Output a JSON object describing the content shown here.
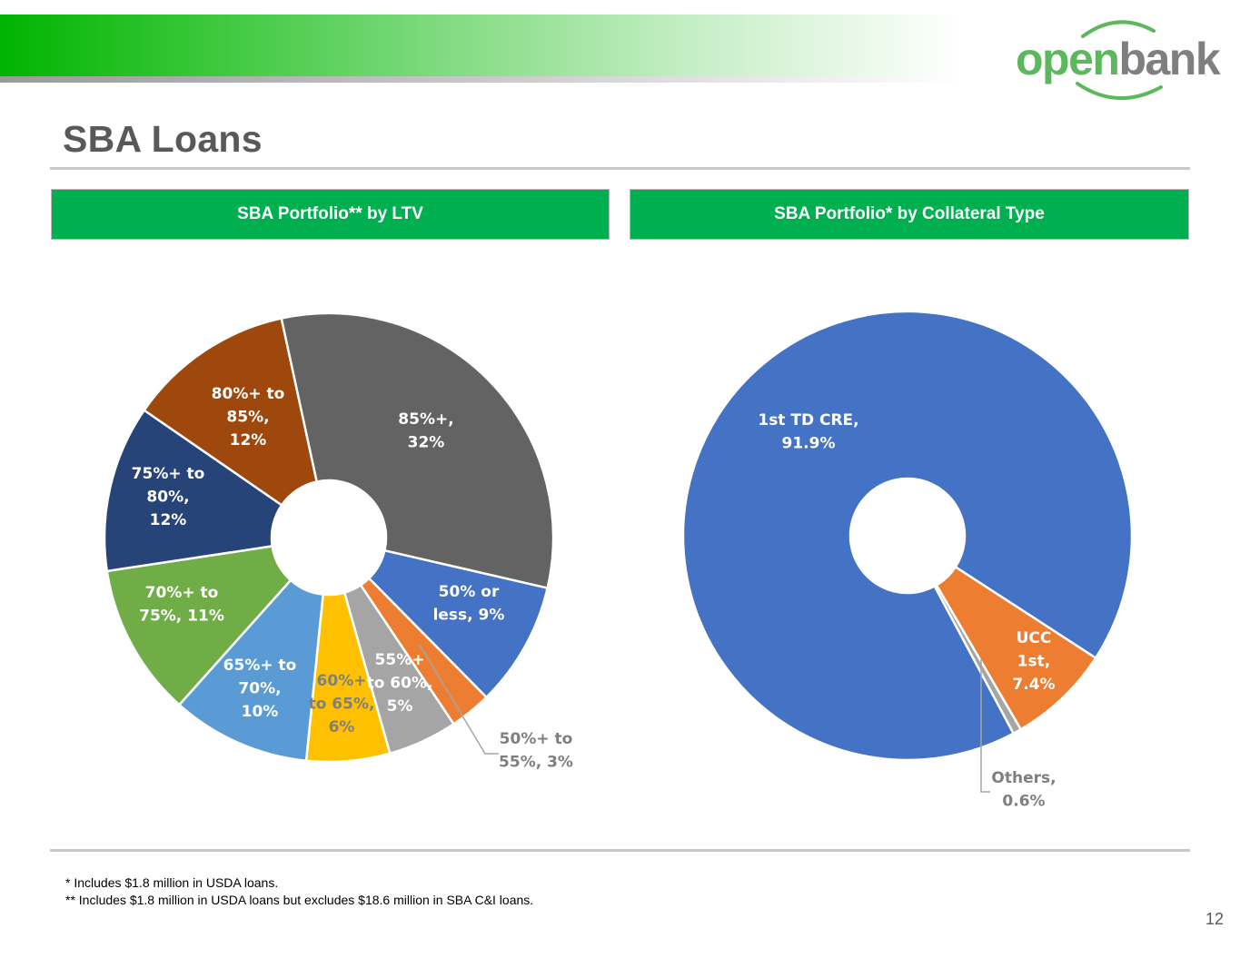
{
  "page": {
    "title": "SBA Loans",
    "page_number": "12",
    "footnotes": [
      "* Includes $1.8 million in USDA loans.",
      "** Includes $1.8 million in USDA loans but excludes $18.6 million in SBA C&I loans."
    ]
  },
  "logo": {
    "word_1": "open",
    "word_2": "bank",
    "color_1": "#5cb85c",
    "color_2": "#7f7f7f"
  },
  "panels": {
    "ltv": {
      "header": "SBA Portfolio** by LTV"
    },
    "collateral": {
      "header": "SBA Portfolio* by Collateral Type"
    }
  },
  "chart_data": [
    {
      "type": "pie",
      "variant": "donut",
      "title": "SBA Portfolio** by LTV",
      "unit": "%",
      "slices": [
        {
          "label": [
            "50% or",
            "less, 9%"
          ],
          "value": 9,
          "color": "#4472c4",
          "label_color": "#ffffff"
        },
        {
          "label": [
            "50%+ to",
            "55%, 3%"
          ],
          "value": 3,
          "color": "#ed7d31",
          "label_color": "#7f7f7f",
          "leader_line": true
        },
        {
          "label": [
            "55%+",
            "to 60%,",
            "5%"
          ],
          "value": 5,
          "color": "#a5a5a5",
          "label_color": "#ffffff"
        },
        {
          "label": [
            "60%+",
            "to 65%,",
            "6%"
          ],
          "value": 6,
          "color": "#ffc000",
          "label_color": "#7f7f7f"
        },
        {
          "label": [
            "65%+ to",
            "70%,",
            "10%"
          ],
          "value": 10,
          "color": "#5b9bd5",
          "label_color": "#ffffff"
        },
        {
          "label": [
            "70%+ to",
            "75%, 11%"
          ],
          "value": 11,
          "color": "#70ad47",
          "label_color": "#ffffff"
        },
        {
          "label": [
            "75%+ to",
            "80%,",
            "12%"
          ],
          "value": 12,
          "color": "#264478",
          "label_color": "#ffffff"
        },
        {
          "label": [
            "80%+ to",
            "85%,",
            "12%"
          ],
          "value": 12,
          "color": "#9e480e",
          "label_color": "#ffffff"
        },
        {
          "label": [
            "85%+,",
            "32%"
          ],
          "value": 32,
          "color": "#636363",
          "label_color": "#ffffff"
        }
      ]
    },
    {
      "type": "pie",
      "variant": "donut",
      "title": "SBA Portfolio* by Collateral Type",
      "unit": "%",
      "slices": [
        {
          "label": [
            "UCC",
            "1st,",
            "7.4%"
          ],
          "value": 7.4,
          "color": "#ed7d31",
          "label_color": "#ffffff"
        },
        {
          "label": [
            "Others,",
            "0.6%"
          ],
          "value": 0.6,
          "color": "#a5a5a5",
          "label_color": "#7f7f7f",
          "leader_line": true
        },
        {
          "label": [
            "1st TD CRE,",
            "91.9%"
          ],
          "value": 91.9,
          "color": "#4472c4",
          "label_color": "#ffffff"
        }
      ]
    }
  ]
}
